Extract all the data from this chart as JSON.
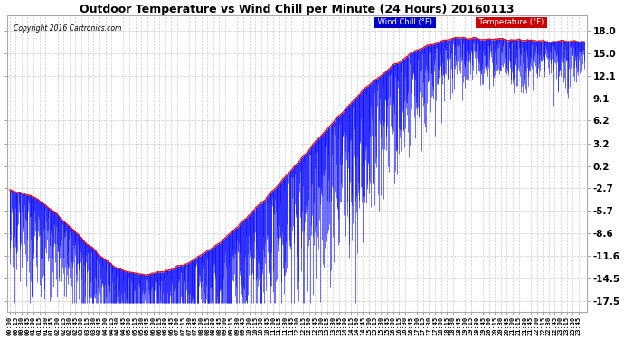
{
  "title": "Outdoor Temperature vs Wind Chill per Minute (24 Hours) 20160113",
  "copyright": "Copyright 2016 Cartronics.com",
  "yticks": [
    18.0,
    15.0,
    12.1,
    9.1,
    6.2,
    3.2,
    0.2,
    -2.7,
    -5.7,
    -8.6,
    -11.6,
    -14.5,
    -17.5
  ],
  "ymin": -19.0,
  "ymax": 20.0,
  "temp_color": "#ff0000",
  "windchill_color": "#0000ff",
  "background_color": "#ffffff",
  "plot_bg_color": "#ffffff",
  "grid_color": "#cccccc",
  "legend_windchill_bg": "#0000cc",
  "legend_temp_bg": "#cc0000",
  "legend_text_color": "#ffffff",
  "total_minutes": 1440,
  "x_tick_interval": 15
}
